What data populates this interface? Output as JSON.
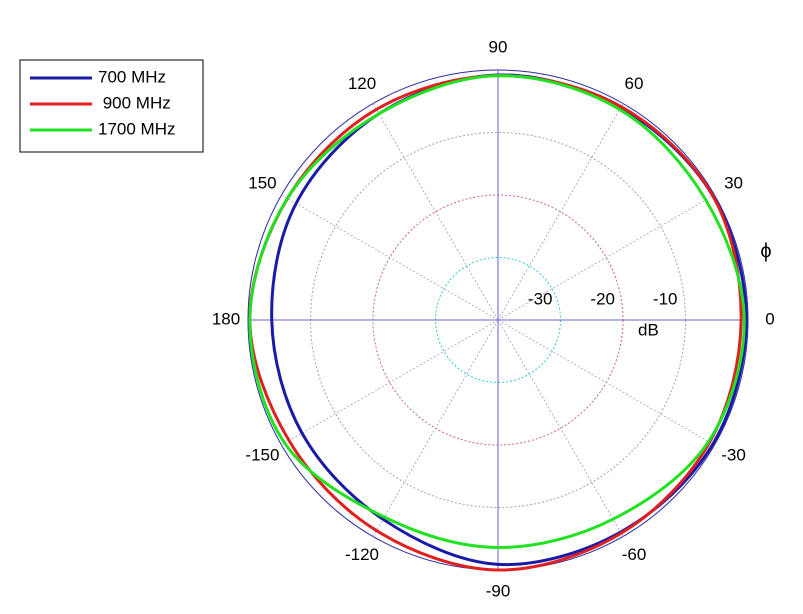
{
  "chart_data": {
    "type": "polar",
    "x": [
      0,
      30,
      60,
      90,
      120,
      150,
      180,
      -150,
      -120,
      -90,
      -60,
      -30
    ],
    "series": [
      {
        "name": "700 MHz",
        "color": "#1a1aa6",
        "values": [
          -0.3,
          -0.3,
          -0.8,
          -0.8,
          -1.9,
          -2.7,
          -3.8,
          -3.8,
          -3.2,
          -0.9,
          -0.8,
          -0.3
        ]
      },
      {
        "name": " 900 MHz",
        "color": "#e02020",
        "values": [
          -1.1,
          -0.3,
          -0.6,
          -0.9,
          -1.1,
          -1.1,
          -0.3,
          -1.4,
          -1.1,
          0,
          -0.6,
          -0.9
        ]
      },
      {
        "name": "1700 MHz",
        "color": "#22e022",
        "values": [
          -0.6,
          -1.6,
          -1.1,
          -0.9,
          -1.9,
          -1.1,
          -0.3,
          -0.6,
          -3.6,
          -3.6,
          -3.2,
          -1.1
        ]
      }
    ],
    "rlim": [
      -40,
      0
    ],
    "rticks": [
      -30,
      -20,
      -10
    ],
    "thetaticks": [
      0,
      30,
      60,
      90,
      120,
      150,
      180,
      -150,
      -120,
      -90,
      -60,
      -30
    ],
    "r_label": "dB",
    "theta_label": "ϕ"
  }
}
